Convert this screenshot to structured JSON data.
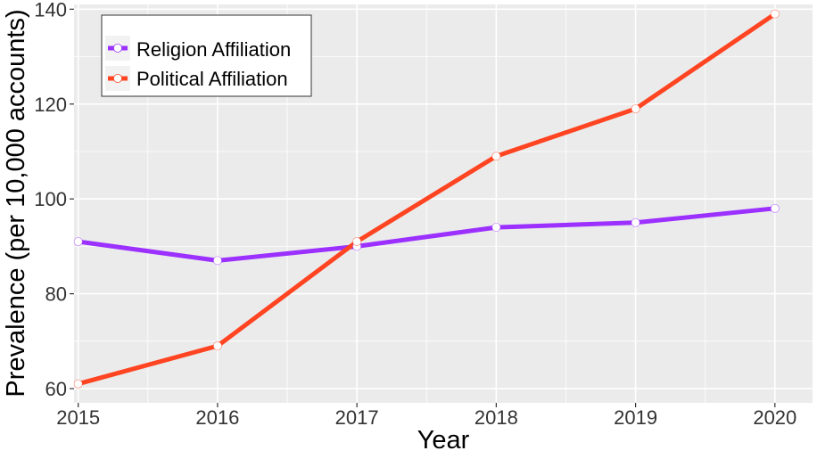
{
  "chart_data": {
    "type": "line",
    "title": "",
    "xlabel": "Year",
    "ylabel": "Prevalence (per 10,000 accounts)",
    "x": [
      2015,
      2016,
      2017,
      2018,
      2019,
      2020
    ],
    "x_tick_labels": [
      "2015",
      "2016",
      "2017",
      "2018",
      "2019",
      "2020"
    ],
    "xlim": [
      2014.97,
      2020.27
    ],
    "ylim": [
      57,
      141
    ],
    "y_ticks": [
      60,
      80,
      100,
      120,
      140
    ],
    "y_tick_labels": [
      "60",
      "80",
      "100",
      "120",
      "140"
    ],
    "grid": true,
    "legend_position": "top-left",
    "panel_color": "#ebebeb",
    "series": [
      {
        "name": "Religion Affiliation",
        "color": "#9b30ff",
        "values": [
          91,
          87,
          90,
          94,
          95,
          98
        ]
      },
      {
        "name": "Political Affiliation",
        "color": "#ff4422",
        "values": [
          61,
          69,
          91,
          109,
          119,
          139
        ]
      }
    ]
  }
}
